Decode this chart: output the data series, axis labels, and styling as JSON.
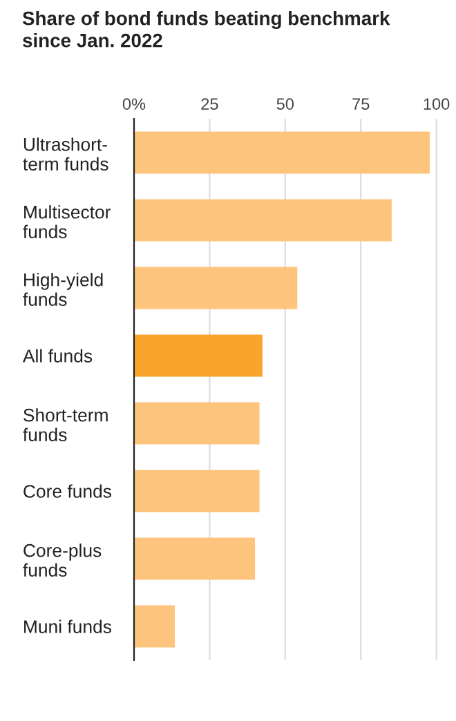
{
  "chart_data": {
    "type": "bar",
    "orientation": "horizontal",
    "title": "Share of bond funds beating benchmark\nsince Jan. 2022",
    "categories": [
      "Ultrashort-\nterm funds",
      "Multisector\nfunds",
      "High-yield\nfunds",
      "All funds",
      "Short-term\nfunds",
      "Core funds",
      "Core-plus\nfunds",
      "Muni funds"
    ],
    "values": [
      97.8,
      85.2,
      54,
      42.5,
      41.5,
      41.5,
      40,
      13.5
    ],
    "colors": [
      "#fdc47e",
      "#fdc47e",
      "#fdc47e",
      "#f9a42a",
      "#fdc47e",
      "#fdc47e",
      "#fdc47e",
      "#fdc47e"
    ],
    "xlim": [
      0,
      101
    ],
    "xticks": [
      {
        "value": 0,
        "label": "0%"
      },
      25,
      50,
      75,
      100
    ],
    "grid": "x"
  }
}
